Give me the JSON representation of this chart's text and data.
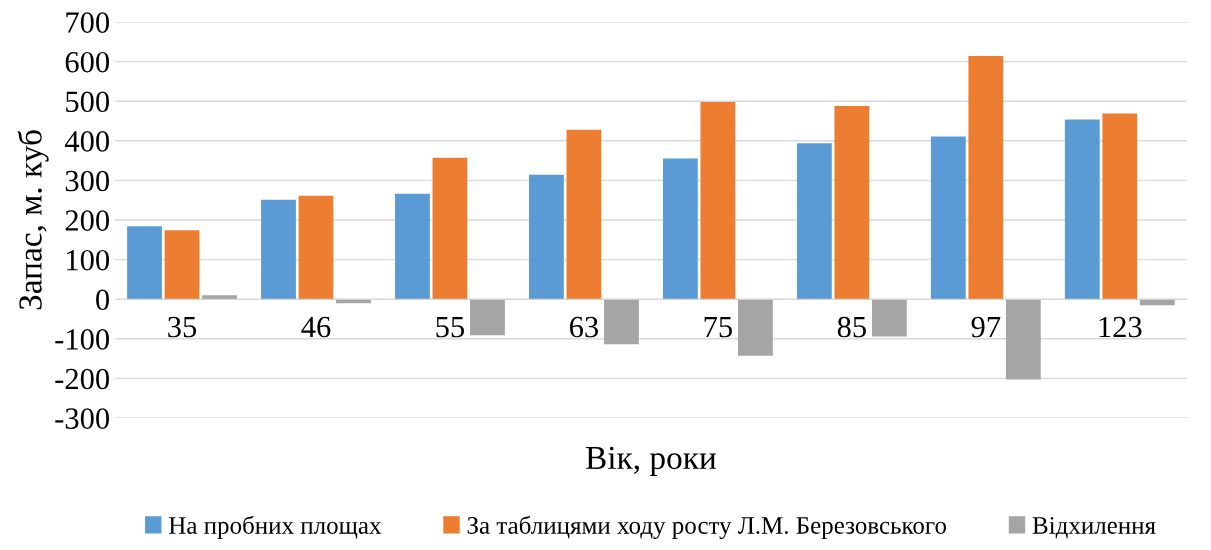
{
  "chart_data": {
    "type": "bar",
    "xlabel": "Вік, роки",
    "ylabel": "Запас, м. куб",
    "categories": [
      "35",
      "46",
      "55",
      "63",
      "75",
      "85",
      "97",
      "123"
    ],
    "series": [
      {
        "name": "На пробних площах",
        "color": "#5b9bd5",
        "values": [
          184,
          251,
          266,
          314,
          355,
          394,
          411,
          454
        ]
      },
      {
        "name": "За таблицями ходу росту Л.М. Березовського",
        "color": "#ed7d31",
        "values": [
          174,
          261,
          357,
          428,
          498,
          488,
          614,
          469
        ]
      },
      {
        "name": "Відхилення",
        "color": "#a5a5a5",
        "values": [
          10,
          -10,
          -91,
          -114,
          -143,
          -94,
          -203,
          -15
        ]
      }
    ],
    "ylim": [
      -300,
      700
    ],
    "yticks": [
      -300,
      -200,
      -100,
      0,
      100,
      200,
      300,
      400,
      500,
      600,
      700
    ],
    "grid": "y",
    "legend": "bottom"
  }
}
